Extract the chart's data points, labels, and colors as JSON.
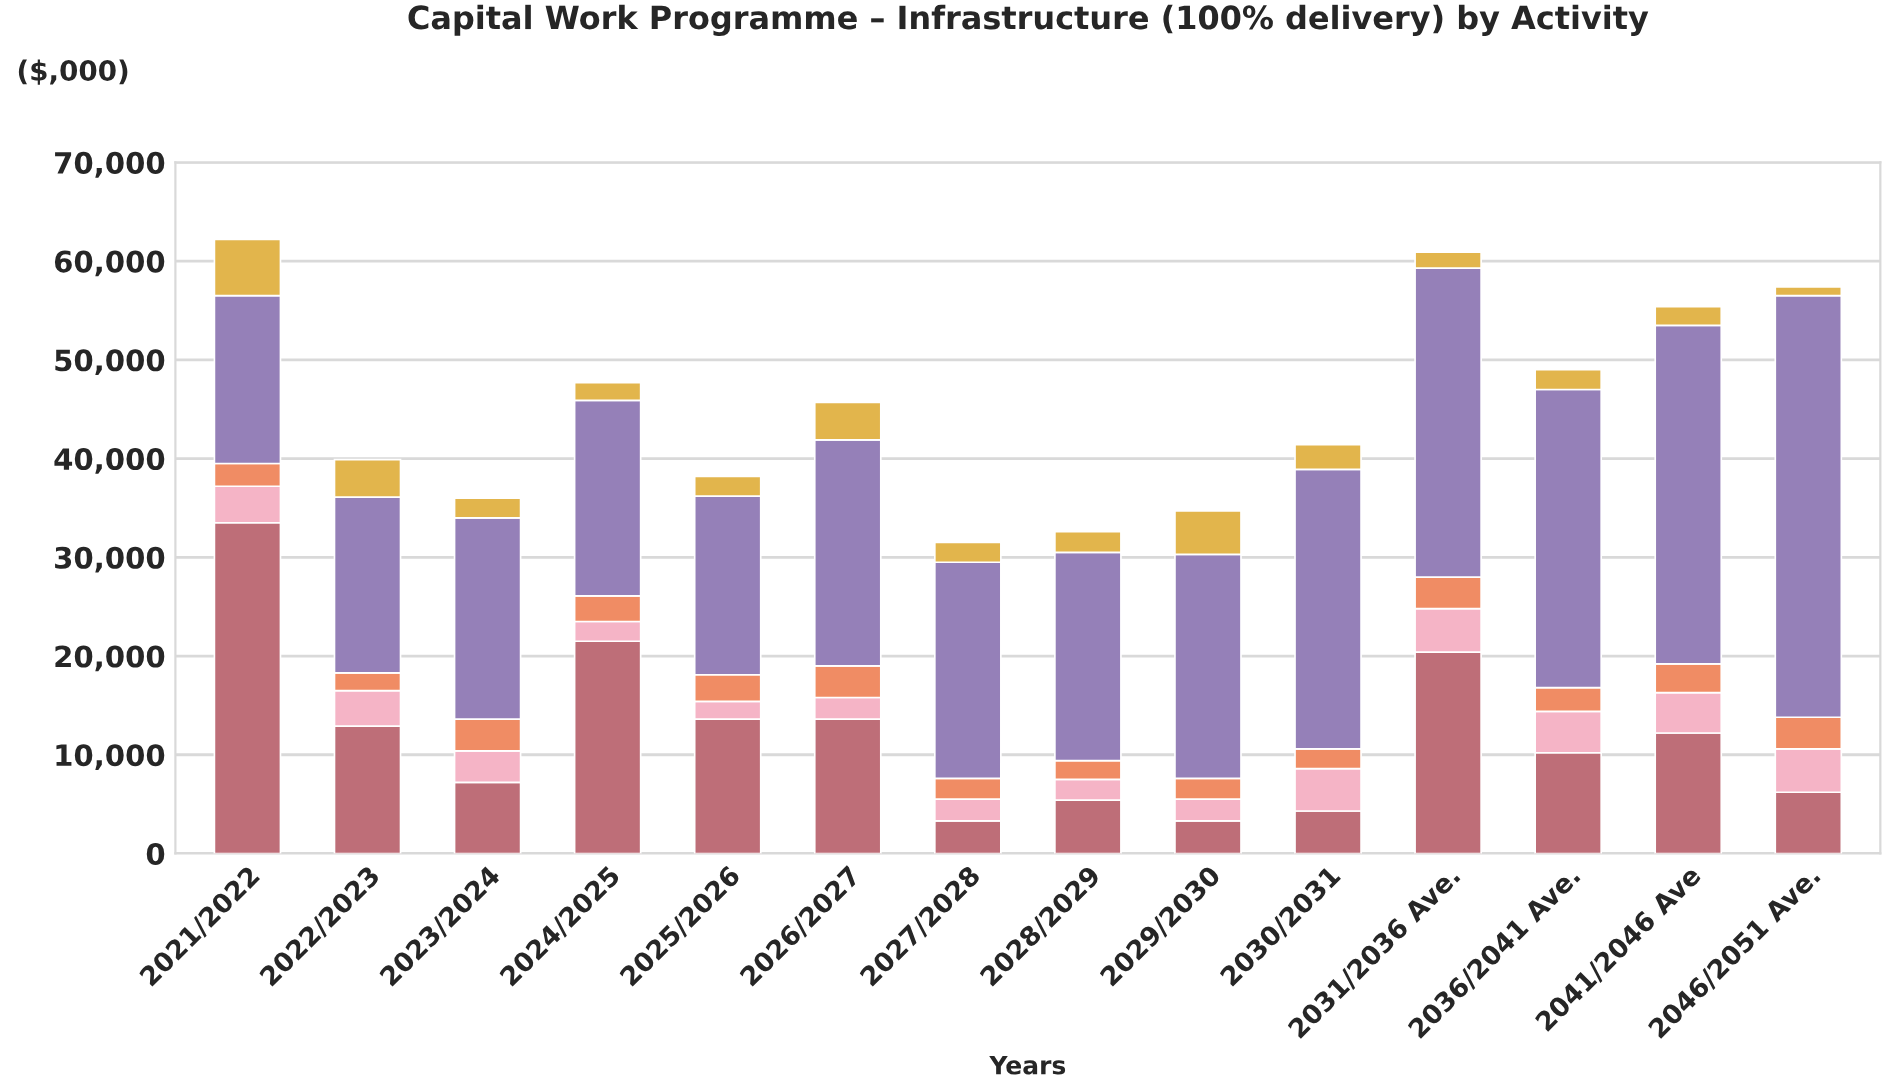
{
  "chart_data": {
    "type": "bar",
    "title": "Capital Work Programme – Infrastructure (100% delivery) by Activity",
    "ylabel": "($,000)",
    "xlabel": "Years",
    "categories": [
      "2021/2022",
      "2022/2023",
      "2023/2024",
      "2024/2025",
      "2025/2026",
      "2026/2027",
      "2027/2028",
      "2028/2029",
      "2029/2030",
      "2030/2031",
      "2031/2036 Ave.",
      "2036/2041 Ave.",
      "2041/2046 Ave",
      "2046/2051 Ave."
    ],
    "stacked": true,
    "series": [
      {
        "color": "#be6e78",
        "values": [
          33500,
          12900,
          7200,
          21500,
          13600,
          13600,
          3300,
          5400,
          3300,
          4300,
          20400,
          10200,
          12200,
          6200
        ]
      },
      {
        "color": "#f5b4c6",
        "values": [
          3700,
          3600,
          3200,
          2000,
          1800,
          2200,
          2200,
          2100,
          2200,
          4300,
          4400,
          4200,
          4100,
          4400
        ]
      },
      {
        "color": "#f08c64",
        "values": [
          2300,
          1800,
          3200,
          2600,
          2700,
          3200,
          2100,
          1900,
          2100,
          2000,
          3200,
          2400,
          2900,
          3200
        ]
      },
      {
        "color": "#9580b8",
        "values": [
          17000,
          17800,
          20400,
          19800,
          18100,
          22900,
          21900,
          21100,
          22700,
          28300,
          31300,
          30200,
          34300,
          42700
        ]
      },
      {
        "color": "#e2b54c",
        "values": [
          5700,
          3800,
          2000,
          1800,
          2000,
          3800,
          2000,
          2100,
          4400,
          2500,
          1600,
          2000,
          1900,
          900
        ]
      }
    ],
    "ylim": [
      0,
      70000
    ],
    "yticks": [
      {
        "value": 0,
        "label": "0"
      },
      {
        "value": 10000,
        "label": "10,000"
      },
      {
        "value": 20000,
        "label": "20,000"
      },
      {
        "value": 30000,
        "label": "30,000"
      },
      {
        "value": 40000,
        "label": "40,000"
      },
      {
        "value": 50000,
        "label": "50,000"
      },
      {
        "value": 60000,
        "label": "60,000"
      },
      {
        "value": 70000,
        "label": "70,000"
      }
    ],
    "grid": "y"
  }
}
